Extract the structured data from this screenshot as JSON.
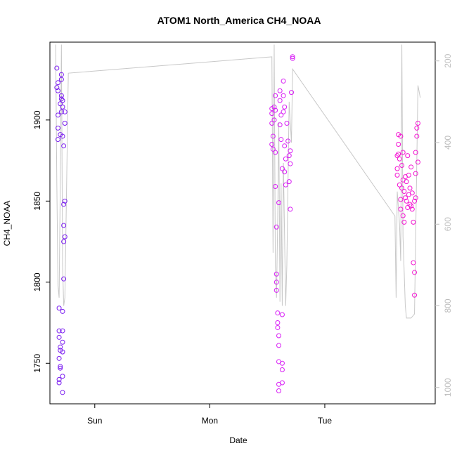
{
  "chart_data": {
    "type": "scatter",
    "title": "ATOM1 North_America CH4_NOAA",
    "x_label": "Date",
    "y_label": "CH4_NOAA",
    "xlim": [
      -0.39,
      2.96
    ],
    "xticks": [
      {
        "value": 0,
        "label": "Sun"
      },
      {
        "value": 1,
        "label": "Mon"
      },
      {
        "value": 2,
        "label": "Tue"
      }
    ],
    "ylim": [
      1725,
      1948
    ],
    "yticks": [
      1750,
      1800,
      1850,
      1900
    ],
    "y2lim": [
      1040,
      154
    ],
    "y2ticks": [
      200,
      400,
      600,
      800,
      1000
    ],
    "y2color": "#bdbdbd",
    "series": [
      {
        "color": "#7a1cf0",
        "x": [
          -0.33,
          -0.33,
          -0.32,
          -0.32,
          -0.32,
          -0.32,
          -0.32,
          -0.31,
          -0.31,
          -0.31,
          -0.31,
          -0.31,
          -0.31,
          -0.3,
          -0.3,
          -0.3,
          -0.3,
          -0.3,
          -0.3,
          -0.29,
          -0.29,
          -0.29,
          -0.29,
          -0.29,
          -0.28,
          -0.28,
          -0.28,
          -0.28,
          -0.28,
          -0.28,
          -0.28,
          -0.28,
          -0.28,
          -0.27,
          -0.27,
          -0.27,
          -0.27,
          -0.27,
          -0.26,
          -0.26,
          -0.26,
          -0.26
        ],
        "values": [
          1920,
          1932,
          1918,
          1923,
          1895,
          1903,
          1888,
          1784,
          1770,
          1766,
          1753,
          1740,
          1738,
          1760,
          1748,
          1747,
          1758,
          1891,
          1910,
          1928,
          1915,
          1925,
          1905,
          1913,
          1912,
          1908,
          1890,
          1770,
          1763,
          1757,
          1742,
          1732,
          1782,
          1802,
          1825,
          1835,
          1848,
          1884,
          1898,
          1905,
          1828,
          1850
        ]
      },
      {
        "color": "#d81ef5",
        "x": [
          1.54,
          1.54,
          1.54,
          1.54,
          1.55,
          1.55,
          1.56,
          1.56,
          1.57,
          1.57,
          1.57,
          1.57,
          1.58,
          1.58,
          1.58,
          1.58,
          1.59,
          1.59,
          1.59,
          1.6,
          1.6,
          1.6,
          1.6,
          1.6,
          1.6,
          1.61,
          1.61,
          1.61,
          1.62,
          1.62,
          1.63,
          1.63,
          1.63,
          1.63,
          1.64,
          1.64,
          1.64,
          1.65,
          1.65,
          1.66,
          1.66,
          1.67,
          1.68,
          1.69,
          1.69,
          1.7,
          1.7,
          1.7,
          1.71,
          1.72,
          1.72,
          1.63,
          1.65
        ],
        "values": [
          1907,
          1904,
          1898,
          1885,
          1882,
          1890,
          1908,
          1900,
          1906,
          1915,
          1880,
          1859,
          1834,
          1805,
          1800,
          1795,
          1781,
          1775,
          1772,
          1767,
          1761,
          1751,
          1737,
          1733,
          1849,
          1918,
          1912,
          1897,
          1903,
          1888,
          1780,
          1750,
          1746,
          1738,
          1924,
          1915,
          1905,
          1884,
          1868,
          1876,
          1860,
          1898,
          1887,
          1878,
          1862,
          1845,
          1873,
          1881,
          1917,
          1939,
          1938,
          1870,
          1908
        ]
      },
      {
        "color": "#f414d2",
        "x": [
          2.63,
          2.63,
          2.63,
          2.64,
          2.64,
          2.64,
          2.65,
          2.65,
          2.66,
          2.66,
          2.66,
          2.67,
          2.67,
          2.68,
          2.68,
          2.68,
          2.69,
          2.69,
          2.7,
          2.7,
          2.71,
          2.71,
          2.72,
          2.72,
          2.73,
          2.73,
          2.74,
          2.74,
          2.75,
          2.75,
          2.76,
          2.76,
          2.77,
          2.77,
          2.78,
          2.78,
          2.78,
          2.79,
          2.79,
          2.8,
          2.8,
          2.81,
          2.81,
          2.79
        ],
        "values": [
          1878,
          1870,
          1866,
          1891,
          1885,
          1879,
          1860,
          1876,
          1890,
          1851,
          1845,
          1872,
          1858,
          1880,
          1863,
          1841,
          1837,
          1856,
          1865,
          1852,
          1850,
          1862,
          1846,
          1878,
          1854,
          1866,
          1848,
          1858,
          1871,
          1847,
          1845,
          1855,
          1837,
          1812,
          1806,
          1792,
          1850,
          1867,
          1880,
          1890,
          1895,
          1898,
          1874,
          1852
        ]
      },
      {
        "color": "#c8c8c8",
        "axis": "y2",
        "x": [
          -0.34,
          -0.33,
          -0.32,
          -0.31,
          -0.3,
          -0.29,
          -0.28,
          -0.27,
          -0.26,
          -0.25,
          -0.23,
          1.54,
          1.55,
          1.56,
          1.57,
          1.58,
          1.59,
          1.6,
          1.61,
          1.62,
          1.63,
          1.64,
          1.66,
          1.67,
          1.69,
          1.71,
          1.72,
          2.61,
          2.62,
          2.63,
          2.65,
          2.66,
          2.67,
          2.68,
          2.7,
          2.71,
          2.75,
          2.78,
          2.81,
          2.83
        ],
        "values": [
          160,
          500,
          750,
          780,
          500,
          160,
          700,
          800,
          780,
          600,
          230,
          190,
          670,
          160,
          700,
          780,
          600,
          350,
          790,
          500,
          800,
          450,
          800,
          700,
          300,
          400,
          220,
          580,
          780,
          520,
          600,
          690,
          160,
          630,
          800,
          830,
          830,
          820,
          260,
          290
        ]
      }
    ]
  }
}
